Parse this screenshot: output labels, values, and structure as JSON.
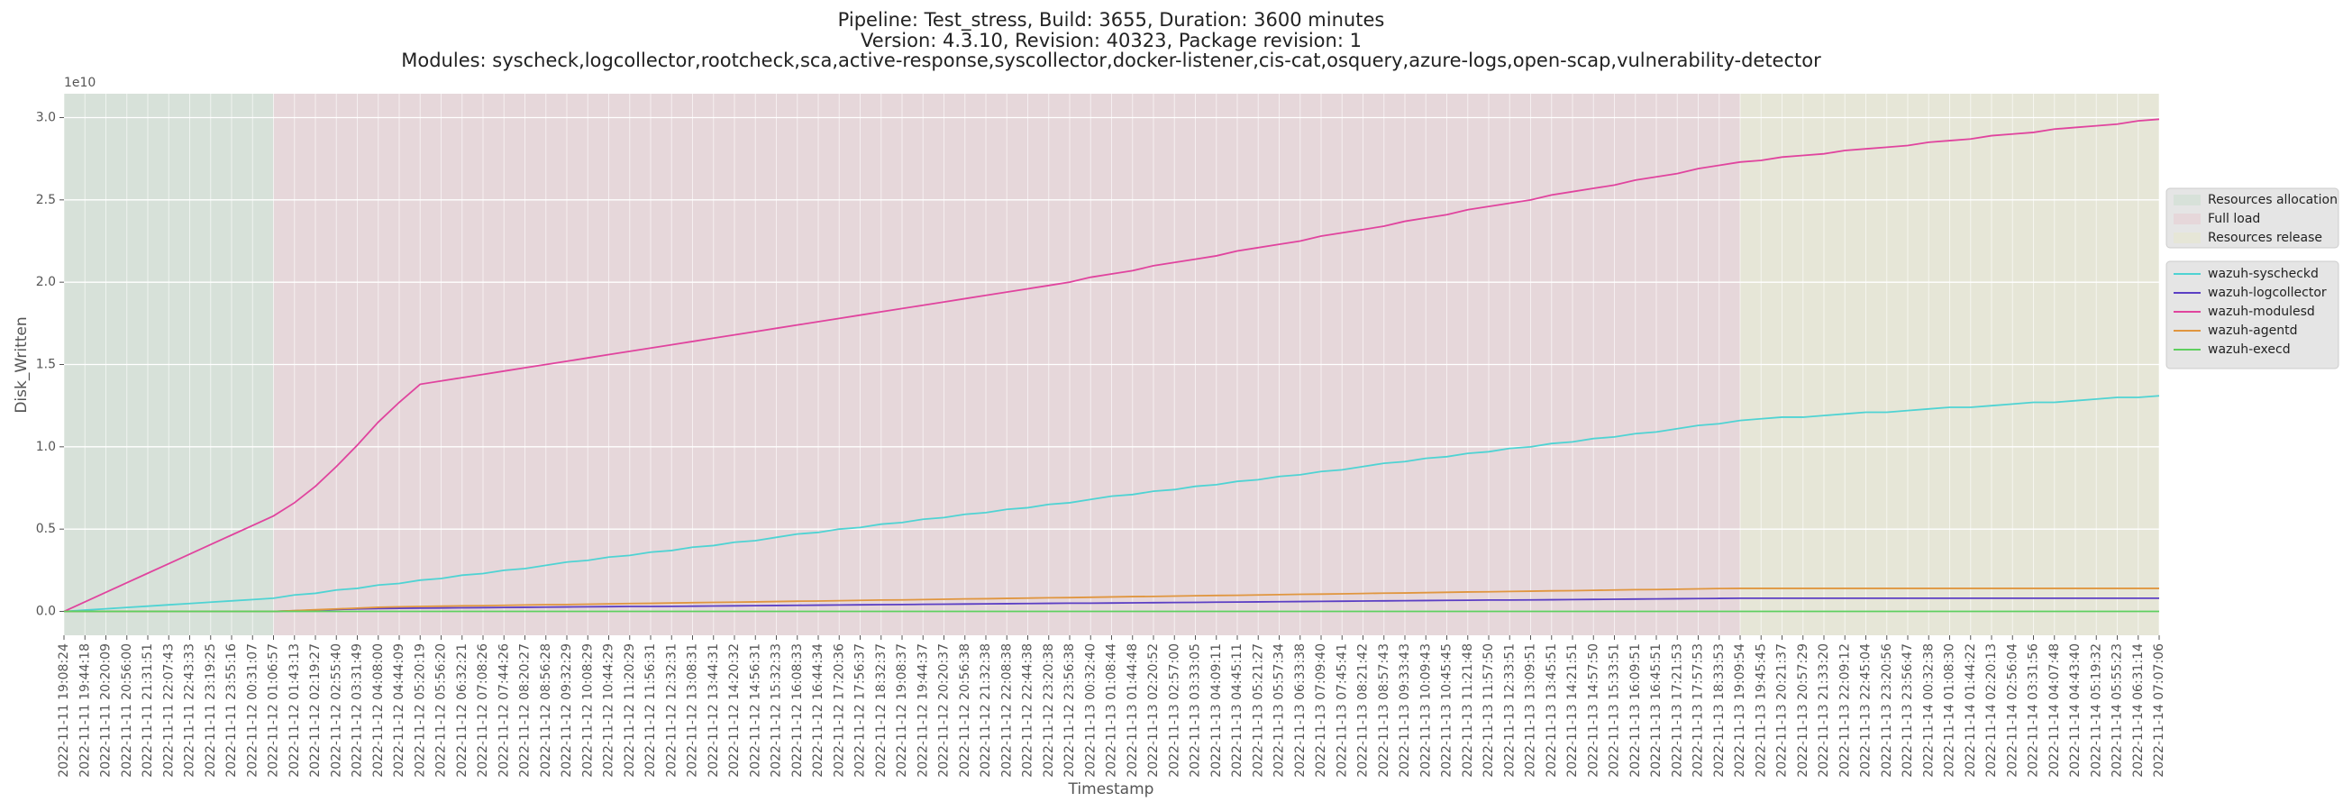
{
  "chart_data": {
    "type": "line",
    "title": [
      "Pipeline: Test_stress, Build: 3655, Duration: 3600 minutes",
      "Version: 4.3.10, Revision: 40323, Package revision: 1",
      "Modules: syscheck,logcollector,rootcheck,sca,active-response,syscollector,docker-listener,cis-cat,osquery,azure-logs,open-scap,vulnerability-detector"
    ],
    "xlabel": "Timestamp",
    "ylabel": "Disk_Written",
    "y_offset_label": "1e10",
    "grid": true,
    "legend": "right",
    "ylim": [
      -0.145,
      3.145
    ],
    "yticks": [
      {
        "value": 0,
        "label": "0.0"
      },
      0.5,
      {
        "value": 1,
        "label": "1.0"
      },
      1.5,
      {
        "value": 2,
        "label": "2.0"
      },
      2.5,
      {
        "value": 3,
        "label": "3.0"
      }
    ],
    "categories": [
      "2022-11-11 19:08:24",
      "2022-11-11 19:44:18",
      "2022-11-11 20:20:09",
      "2022-11-11 20:56:00",
      "2022-11-11 21:31:51",
      "2022-11-11 22:07:43",
      "2022-11-11 22:43:33",
      "2022-11-11 23:19:25",
      "2022-11-11 23:55:16",
      "2022-11-12 00:31:07",
      "2022-11-12 01:06:57",
      "2022-11-12 01:43:13",
      "2022-11-12 02:19:27",
      "2022-11-12 02:55:40",
      "2022-11-12 03:31:49",
      "2022-11-12 04:08:00",
      "2022-11-12 04:44:09",
      "2022-11-12 05:20:19",
      "2022-11-12 05:56:20",
      "2022-11-12 06:32:21",
      "2022-11-12 07:08:26",
      "2022-11-12 07:44:26",
      "2022-11-12 08:20:27",
      "2022-11-12 08:56:28",
      "2022-11-12 09:32:29",
      "2022-11-12 10:08:29",
      "2022-11-12 10:44:29",
      "2022-11-12 11:20:29",
      "2022-11-12 11:56:31",
      "2022-11-12 12:32:31",
      "2022-11-12 13:08:31",
      "2022-11-12 13:44:31",
      "2022-11-12 14:20:32",
      "2022-11-12 14:56:31",
      "2022-11-12 15:32:33",
      "2022-11-12 16:08:33",
      "2022-11-12 16:44:34",
      "2022-11-12 17:20:36",
      "2022-11-12 17:56:37",
      "2022-11-12 18:32:37",
      "2022-11-12 19:08:37",
      "2022-11-12 19:44:37",
      "2022-11-12 20:20:37",
      "2022-11-12 20:56:38",
      "2022-11-12 21:32:38",
      "2022-11-12 22:08:38",
      "2022-11-12 22:44:38",
      "2022-11-12 23:20:38",
      "2022-11-12 23:56:38",
      "2022-11-13 00:32:40",
      "2022-11-13 01:08:44",
      "2022-11-13 01:44:48",
      "2022-11-13 02:20:52",
      "2022-11-13 02:57:00",
      "2022-11-13 03:33:05",
      "2022-11-13 04:09:11",
      "2022-11-13 04:45:11",
      "2022-11-13 05:21:27",
      "2022-11-13 05:57:34",
      "2022-11-13 06:33:38",
      "2022-11-13 07:09:40",
      "2022-11-13 07:45:41",
      "2022-11-13 08:21:42",
      "2022-11-13 08:57:43",
      "2022-11-13 09:33:43",
      "2022-11-13 10:09:43",
      "2022-11-13 10:45:45",
      "2022-11-13 11:21:48",
      "2022-11-13 11:57:50",
      "2022-11-13 12:33:51",
      "2022-11-13 13:09:51",
      "2022-11-13 13:45:51",
      "2022-11-13 14:21:51",
      "2022-11-13 14:57:50",
      "2022-11-13 15:33:51",
      "2022-11-13 16:09:51",
      "2022-11-13 16:45:51",
      "2022-11-13 17:21:53",
      "2022-11-13 17:57:53",
      "2022-11-13 18:33:53",
      "2022-11-13 19:09:54",
      "2022-11-13 19:45:45",
      "2022-11-13 20:21:37",
      "2022-11-13 20:57:29",
      "2022-11-13 21:33:20",
      "2022-11-13 22:09:12",
      "2022-11-13 22:45:04",
      "2022-11-13 23:20:56",
      "2022-11-13 23:56:47",
      "2022-11-14 00:32:38",
      "2022-11-14 01:08:30",
      "2022-11-14 01:44:22",
      "2022-11-14 02:20:13",
      "2022-11-14 02:56:04",
      "2022-11-14 03:31:56",
      "2022-11-14 04:07:48",
      "2022-11-14 04:43:40",
      "2022-11-14 05:19:32",
      "2022-11-14 05:55:23",
      "2022-11-14 06:31:14",
      "2022-11-14 07:07:06"
    ],
    "regions": [
      {
        "name": "Resources allocation",
        "start": "2022-11-11 19:08:24",
        "end": "2022-11-12 01:06:57",
        "color": "#d7e1d9"
      },
      {
        "name": "Full load",
        "start": "2022-11-12 01:06:57",
        "end": "2022-11-13 19:09:54",
        "color": "#e6d7da"
      },
      {
        "name": "Resources release",
        "start": "2022-11-13 19:09:54",
        "end": "2022-11-14 07:07:06",
        "color": "#e6e6d7"
      }
    ],
    "series": [
      {
        "name": "wazuh-syscheckd",
        "color": "#4fd3d3",
        "values": [
          0,
          0.008,
          0.016,
          0.024,
          0.032,
          0.04,
          0.048,
          0.056,
          0.064,
          0.072,
          0.08,
          0.1,
          0.11,
          0.13,
          0.14,
          0.16,
          0.17,
          0.19,
          0.2,
          0.22,
          0.23,
          0.25,
          0.26,
          0.28,
          0.3,
          0.31,
          0.33,
          0.34,
          0.36,
          0.37,
          0.39,
          0.4,
          0.42,
          0.43,
          0.45,
          0.47,
          0.48,
          0.5,
          0.51,
          0.53,
          0.54,
          0.56,
          0.57,
          0.59,
          0.6,
          0.62,
          0.63,
          0.65,
          0.66,
          0.68,
          0.7,
          0.71,
          0.73,
          0.74,
          0.76,
          0.77,
          0.79,
          0.8,
          0.82,
          0.83,
          0.85,
          0.86,
          0.88,
          0.9,
          0.91,
          0.93,
          0.94,
          0.96,
          0.97,
          0.99,
          1.0,
          1.02,
          1.03,
          1.05,
          1.06,
          1.08,
          1.09,
          1.11,
          1.13,
          1.14,
          1.16,
          1.17,
          1.18,
          1.18,
          1.19,
          1.2,
          1.21,
          1.21,
          1.22,
          1.23,
          1.24,
          1.24,
          1.25,
          1.26,
          1.27,
          1.27,
          1.28,
          1.29,
          1.3,
          1.3,
          1.31
        ]
      },
      {
        "name": "wazuh-logcollector",
        "color": "#5b3fc4",
        "values": [
          0,
          0,
          0,
          0,
          0,
          0,
          0,
          0,
          0,
          0,
          0,
          0.004,
          0.008,
          0.012,
          0.015,
          0.017,
          0.019,
          0.02,
          0.021,
          0.022,
          0.023,
          0.024,
          0.025,
          0.026,
          0.027,
          0.028,
          0.029,
          0.03,
          0.03,
          0.031,
          0.032,
          0.033,
          0.034,
          0.035,
          0.036,
          0.037,
          0.038,
          0.039,
          0.04,
          0.041,
          0.042,
          0.043,
          0.044,
          0.045,
          0.046,
          0.047,
          0.048,
          0.049,
          0.05,
          0.05,
          0.051,
          0.052,
          0.053,
          0.054,
          0.055,
          0.056,
          0.057,
          0.058,
          0.059,
          0.06,
          0.061,
          0.062,
          0.063,
          0.064,
          0.065,
          0.066,
          0.067,
          0.068,
          0.069,
          0.069,
          0.07,
          0.071,
          0.072,
          0.073,
          0.074,
          0.075,
          0.076,
          0.077,
          0.078,
          0.079,
          0.08,
          0.08,
          0.08,
          0.08,
          0.08,
          0.08,
          0.08,
          0.08,
          0.08,
          0.08,
          0.08,
          0.08,
          0.08,
          0.08,
          0.08,
          0.08,
          0.08,
          0.08,
          0.08,
          0.08,
          0.08
        ]
      },
      {
        "name": "wazuh-modulesd",
        "color": "#e0449e",
        "values": [
          0,
          0.058,
          0.116,
          0.174,
          0.232,
          0.29,
          0.348,
          0.406,
          0.464,
          0.522,
          0.58,
          0.66,
          0.76,
          0.88,
          1.01,
          1.15,
          1.27,
          1.38,
          1.4,
          1.42,
          1.44,
          1.46,
          1.48,
          1.5,
          1.52,
          1.54,
          1.56,
          1.58,
          1.6,
          1.62,
          1.64,
          1.66,
          1.68,
          1.7,
          1.72,
          1.74,
          1.76,
          1.78,
          1.8,
          1.82,
          1.84,
          1.86,
          1.88,
          1.9,
          1.92,
          1.94,
          1.96,
          1.98,
          2.0,
          2.03,
          2.05,
          2.07,
          2.1,
          2.12,
          2.14,
          2.16,
          2.19,
          2.21,
          2.23,
          2.25,
          2.28,
          2.3,
          2.32,
          2.34,
          2.37,
          2.39,
          2.41,
          2.44,
          2.46,
          2.48,
          2.5,
          2.53,
          2.55,
          2.57,
          2.59,
          2.62,
          2.64,
          2.66,
          2.69,
          2.71,
          2.73,
          2.74,
          2.76,
          2.77,
          2.78,
          2.8,
          2.81,
          2.82,
          2.83,
          2.85,
          2.86,
          2.87,
          2.89,
          2.9,
          2.91,
          2.93,
          2.94,
          2.95,
          2.96,
          2.98,
          2.99
        ]
      },
      {
        "name": "wazuh-agentd",
        "color": "#e0963f",
        "values": [
          0,
          0,
          0,
          0,
          0,
          0,
          0,
          0,
          0,
          0,
          0,
          0.005,
          0.01,
          0.015,
          0.02,
          0.025,
          0.028,
          0.03,
          0.032,
          0.034,
          0.035,
          0.037,
          0.039,
          0.041,
          0.042,
          0.044,
          0.046,
          0.048,
          0.049,
          0.051,
          0.053,
          0.055,
          0.056,
          0.058,
          0.06,
          0.062,
          0.063,
          0.065,
          0.067,
          0.069,
          0.07,
          0.072,
          0.074,
          0.076,
          0.077,
          0.079,
          0.081,
          0.083,
          0.084,
          0.086,
          0.088,
          0.09,
          0.091,
          0.093,
          0.095,
          0.097,
          0.098,
          0.1,
          0.102,
          0.104,
          0.105,
          0.107,
          0.109,
          0.111,
          0.112,
          0.114,
          0.116,
          0.118,
          0.119,
          0.121,
          0.123,
          0.125,
          0.126,
          0.128,
          0.13,
          0.132,
          0.133,
          0.135,
          0.137,
          0.139,
          0.14,
          0.14,
          0.14,
          0.14,
          0.14,
          0.14,
          0.14,
          0.14,
          0.14,
          0.14,
          0.14,
          0.14,
          0.14,
          0.14,
          0.14,
          0.14,
          0.14,
          0.14,
          0.14,
          0.14,
          0.14
        ]
      },
      {
        "name": "wazuh-execd",
        "color": "#5fcf5f",
        "values": [
          0,
          0,
          0,
          0,
          0,
          0,
          0,
          0,
          0,
          0,
          0,
          0,
          0,
          0,
          0,
          0,
          0,
          0,
          0,
          0,
          0,
          0,
          0,
          0,
          0,
          0,
          0,
          0,
          0,
          0,
          0,
          0,
          0,
          0,
          0,
          0,
          0,
          0,
          0,
          0,
          0,
          0,
          0,
          0,
          0,
          0,
          0,
          0,
          0,
          0,
          0,
          0,
          0,
          0,
          0,
          0,
          0,
          0,
          0,
          0,
          0,
          0,
          0,
          0,
          0,
          0,
          0,
          0,
          0,
          0,
          0,
          0,
          0,
          0,
          0,
          0,
          0,
          0,
          0,
          0,
          0,
          0,
          0,
          0,
          0,
          0,
          0,
          0,
          0,
          0,
          0,
          0,
          0,
          0,
          0,
          0,
          0,
          0,
          0,
          0,
          0
        ]
      }
    ]
  }
}
